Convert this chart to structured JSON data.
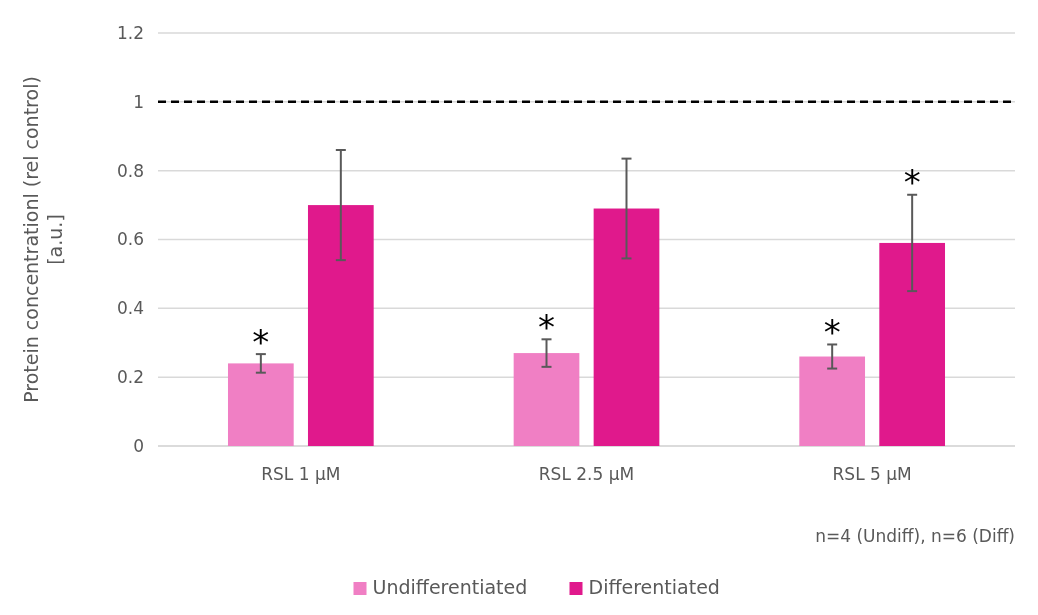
{
  "chart_data": {
    "type": "bar",
    "ylabel": "Protein concentrationl (rel control) [a.u.]",
    "categories": [
      "RSL 1 µM",
      "RSL 2.5 µM",
      "RSL 5 µM"
    ],
    "series": [
      {
        "name": "Undifferentiated",
        "color": "#f07fc4",
        "values": [
          0.24,
          0.27,
          0.26
        ],
        "errors": [
          0.027,
          0.04,
          0.035
        ],
        "value_labels": [
          "*",
          "*",
          "*"
        ]
      },
      {
        "name": "Differentiated",
        "color": "#e0198c",
        "values": [
          0.7,
          0.69,
          0.59
        ],
        "errors": [
          0.16,
          0.145,
          0.14
        ],
        "value_labels": [
          null,
          null,
          "*"
        ]
      }
    ],
    "ylim": [
      0,
      1.2
    ],
    "yticks": [
      0,
      0.2,
      0.4,
      0.6,
      0.8,
      1,
      1.2
    ],
    "grid": "y",
    "legend": "bottom",
    "ref_lines": [
      {
        "axis": "y",
        "value": 1,
        "color": "#000000",
        "line_style": "dashed"
      }
    ],
    "annotations": [
      "n=4 (Undiff), n=6 (Diff)"
    ]
  }
}
